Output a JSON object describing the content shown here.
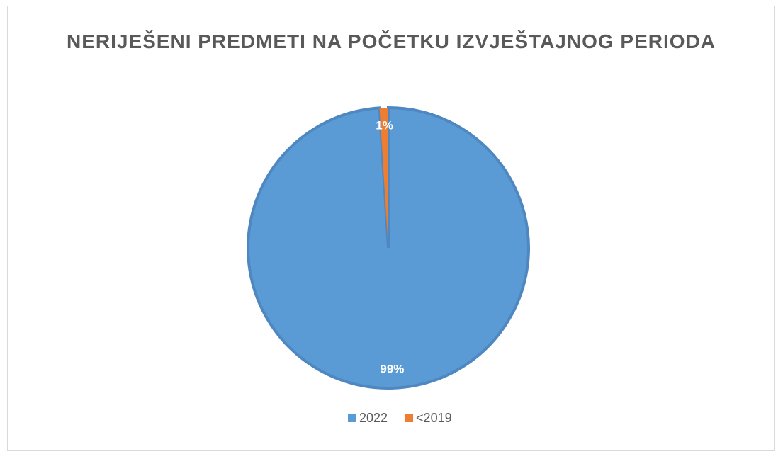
{
  "chart_data": {
    "type": "pie",
    "title": "NERIJEŠENI PREDMETI NA POČETKU IZVJEŠTAJNOG PERIODA",
    "categories": [
      "2022",
      "<2019"
    ],
    "values": [
      99,
      1
    ],
    "value_labels": [
      "99%",
      "1%"
    ],
    "colors": [
      "#5b9bd5",
      "#ed7d31"
    ],
    "legend": "bottom"
  }
}
